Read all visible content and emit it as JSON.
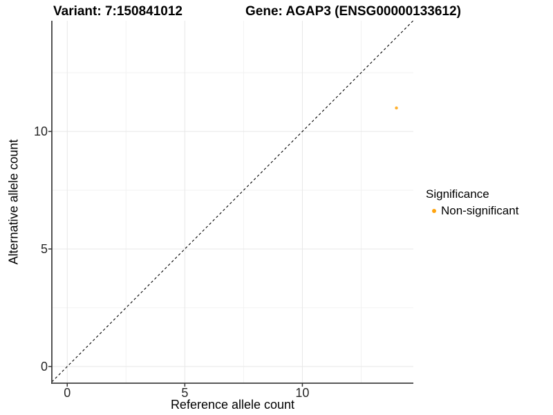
{
  "titles": {
    "variant": "Variant: 7:150841012",
    "gene": "Gene: AGAP3 (ENSG00000133612)"
  },
  "chart_data": {
    "type": "scatter",
    "title_left": "Variant: 7:150841012",
    "title_right": "Gene: AGAP3 (ENSG00000133612)",
    "xlabel": "Reference allele count",
    "ylabel": "Alternative allele count",
    "xlim": [
      -0.655,
      14.72
    ],
    "ylim": [
      -0.71,
      14.71
    ],
    "x_ticks": [
      "0",
      "5",
      "10"
    ],
    "x_tick_values": [
      0,
      5,
      10
    ],
    "y_ticks": [
      "0",
      "5",
      "10"
    ],
    "y_tick_values": [
      0,
      5,
      10
    ],
    "minor_tick_values": [
      2.5,
      7.5,
      12.5
    ],
    "grid": true,
    "reference_line": {
      "slope": 1,
      "intercept": 0,
      "style": "dashed",
      "color": "#000000"
    },
    "series": [
      {
        "name": "Non-significant",
        "color": "#FFA40E",
        "points": [
          {
            "x": 14,
            "y": 11
          }
        ]
      }
    ],
    "legend": {
      "title": "Significance",
      "position": "right",
      "entries": [
        {
          "label": "Non-significant",
          "color": "#FFA40E"
        }
      ]
    }
  },
  "style_colors": {
    "axis_line": "#404040",
    "tick_mark": "#333333",
    "grid_major": "#e7e7e7",
    "grid_minor": "#f2f2f2",
    "point_orange": "#FFA40E"
  }
}
